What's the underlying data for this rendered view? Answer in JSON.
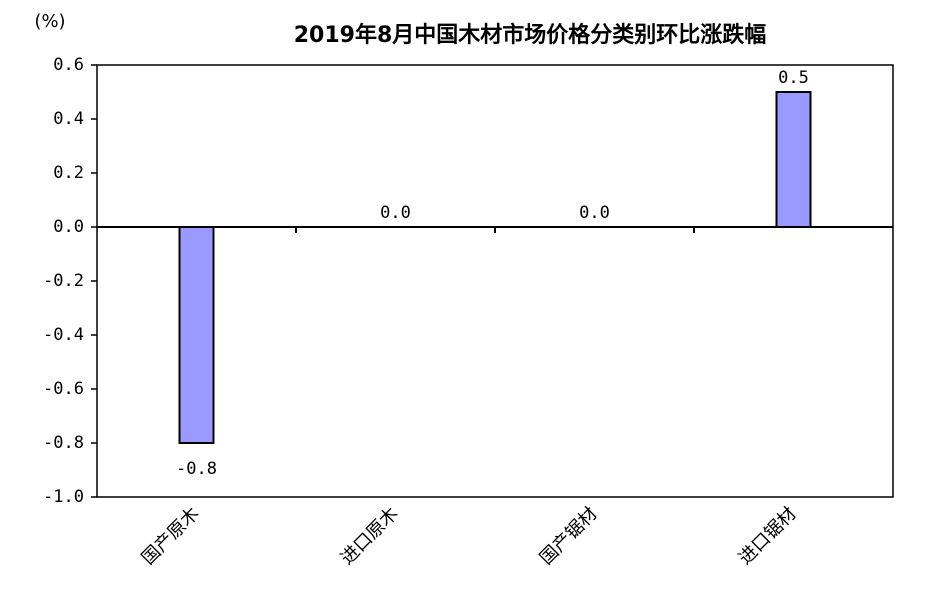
{
  "chart_data": {
    "type": "bar",
    "title": "2019年8月中国木材市场价格分类别环比涨跌幅",
    "y_label": "(%)",
    "categories": [
      "国产原木",
      "进口原木",
      "国产锯材",
      "进口锯材"
    ],
    "values": [
      -0.8,
      0,
      0,
      0.5
    ],
    "value_labels": [
      "-0.8",
      "0.0",
      "0.0",
      "0.5"
    ],
    "color": "#9999ff",
    "ylim": [
      -1,
      0.6
    ],
    "yticks": [
      {
        "value": -1,
        "label": "-1.0"
      },
      -0.8,
      -0.6,
      -0.4,
      -0.2,
      {
        "value": 0,
        "label": "0.0"
      },
      0.2,
      0.4,
      0.6
    ],
    "grid": false
  }
}
